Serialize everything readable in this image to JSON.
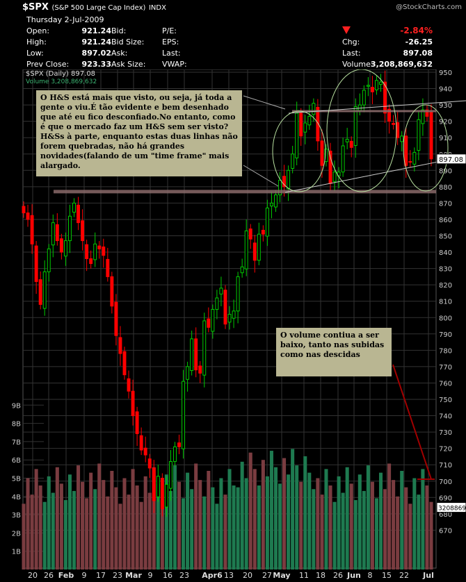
{
  "header": {
    "symbol": "$SPX",
    "name": "(S&P 500 Large Cap Index)",
    "exchange": "INDX",
    "date": "Thursday  2-Jul-2009",
    "watermark": "@StockCharts.com",
    "quotes_left": [
      [
        "Open:",
        "921.24"
      ],
      [
        "High:",
        "921.24"
      ],
      [
        "Low:",
        "897.02"
      ],
      [
        "Prev Close:",
        "923.33"
      ]
    ],
    "quotes_mid": [
      "Bid:",
      "Bid Size:",
      "Ask:",
      "Ask Size:"
    ],
    "quotes_right": [
      "P/E:",
      "EPS:",
      "Last:",
      "VWAP:"
    ],
    "change_pct": "-2.84%",
    "chg_label": "Chg:",
    "chg_value": "-26.25",
    "last_label": "Last:",
    "last_value": "897.08",
    "volume_label": "Volume:",
    "volume_value": "3,208,869,632"
  },
  "legend": {
    "price": "$SPX (Daily) 897.08",
    "volume": "Volume 3,208,869,632"
  },
  "annotations": {
    "note1": "O H&S está mais que visto, ou seja, já toda a gente o viu.É tão evidente e bem desenhado que até eu fico desconfiado.No entanto, como é que o mercado faz um H&S sem ser visto? H&Ss à parte, enquanto estas duas linhas não forem quebradas, não há grandes novidades(falando de um \"time frame\" mais alargado.",
    "note2": "O volume contiua a ser baixo, tanto nas subidas como nas descidas"
  },
  "colors": {
    "up": "#00cc00",
    "down": "#ff0000",
    "vol_up": "#1e7a50",
    "vol_down": "#7a3c40",
    "grid": "#333333",
    "note_bg": "#b9b692",
    "trendline": "#8a6a6a",
    "circle": "#b8e0a0"
  },
  "chart_data": {
    "type": "candlestick",
    "price_axis": {
      "ticks": [
        670,
        680,
        690,
        700,
        710,
        720,
        730,
        740,
        750,
        760,
        770,
        780,
        790,
        800,
        810,
        820,
        830,
        840,
        850,
        860,
        870,
        880,
        890,
        900,
        910,
        920,
        930,
        940,
        950
      ],
      "ylim": [
        665,
        957
      ]
    },
    "volume_axis": {
      "ticks": [
        "1B",
        "2B",
        "3B",
        "4B",
        "5B",
        "6B",
        "7B",
        "8B",
        "9B"
      ],
      "ylim": [
        0,
        10
      ]
    },
    "x_ticks": [
      "20",
      "26",
      "Feb",
      "9",
      "17",
      "23",
      "Mar",
      "9",
      "16",
      "23",
      "Apr6",
      "13",
      "20",
      "27",
      "May",
      "11",
      "18",
      "26",
      "Jun",
      "8",
      "15",
      "22",
      "Jul"
    ],
    "last_price_label": "897.08",
    "last_volume_label": "3208869",
    "closes": [
      864,
      860,
      845,
      822,
      808,
      828,
      842,
      858,
      847,
      840,
      847,
      862,
      870,
      858,
      847,
      836,
      833,
      845,
      842,
      838,
      825,
      807,
      789,
      778,
      765,
      755,
      740,
      729,
      719,
      716,
      708,
      688,
      703,
      683,
      698,
      712,
      721,
      721,
      761,
      770,
      787,
      768,
      766,
      798,
      794,
      805,
      812,
      818,
      796,
      802,
      804,
      825,
      831,
      853,
      848,
      835,
      851,
      851,
      867,
      870,
      875,
      884,
      880,
      890,
      900,
      925,
      911,
      919,
      923,
      931,
      908,
      893,
      903,
      882,
      889,
      889,
      905,
      909,
      904,
      929,
      930,
      939,
      942,
      938,
      945,
      944,
      925,
      920,
      918,
      910,
      911,
      893,
      895,
      901,
      921,
      927,
      923,
      897
    ]
  }
}
